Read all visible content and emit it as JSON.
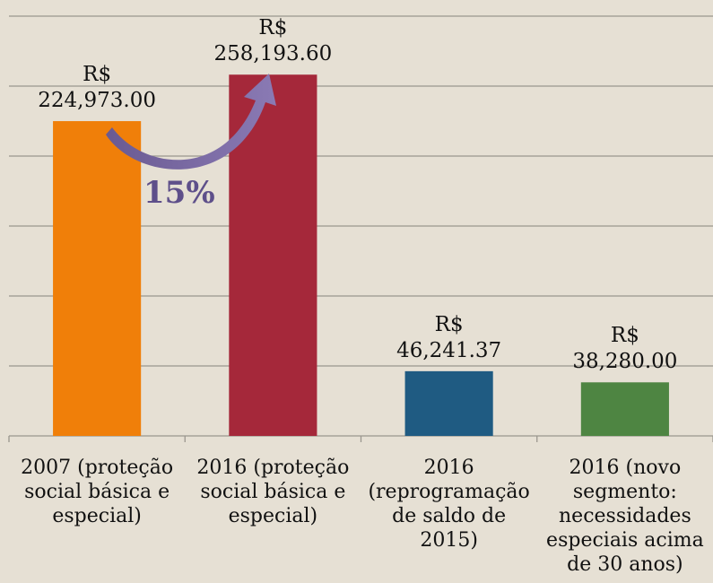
{
  "chart_data": {
    "type": "bar",
    "categories": [
      "2007 (proteção social básica e especial)",
      "2016 (proteção social básica e especial)",
      "2016 (reprogramação de saldo de 2015)",
      "2016 (novo segmento: necessidades especiais acima de 30 anos)"
    ],
    "values": [
      224973,
      258193.6,
      46241.37,
      38280
    ],
    "value_labels": [
      "R$\n224,973.00",
      "R$\n258,193.60",
      "R$\n46,241.37",
      "R$\n38,280.00"
    ],
    "colors": [
      "#f07f09",
      "#a5283a",
      "#1f5b82",
      "#4e8542"
    ],
    "ylim": [
      0,
      300000
    ],
    "yticks": [
      0,
      50000,
      100000,
      150000,
      200000,
      250000,
      300000
    ],
    "grid": true,
    "annotation": "15%"
  }
}
